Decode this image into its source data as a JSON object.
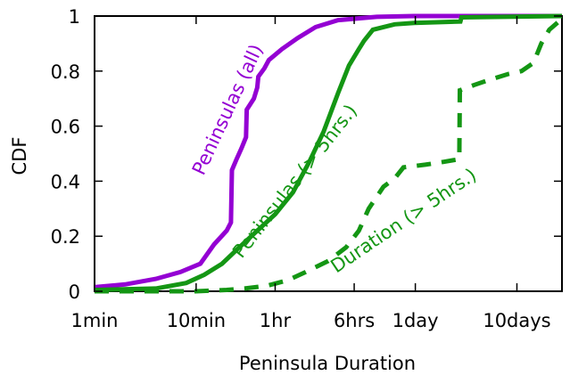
{
  "chart_data": {
    "type": "line",
    "title": "",
    "xlabel": "Peninsula Duration",
    "ylabel": "CDF",
    "xscale": "log",
    "xlim_minutes": [
      1,
      40000
    ],
    "ylim": [
      0,
      1
    ],
    "grid": false,
    "legend": "none",
    "x_ticks": [
      {
        "label": "1min",
        "minutes": 1
      },
      {
        "label": "10min",
        "minutes": 10
      },
      {
        "label": "1hr",
        "minutes": 60
      },
      {
        "label": "6hrs",
        "minutes": 360
      },
      {
        "label": "1day",
        "minutes": 1440
      },
      {
        "label": "10days",
        "minutes": 14400
      }
    ],
    "y_ticks": [
      {
        "label": "0",
        "value": 0
      },
      {
        "label": "0.2",
        "value": 0.2
      },
      {
        "label": "0.4",
        "value": 0.4
      },
      {
        "label": "0.6",
        "value": 0.6
      },
      {
        "label": "0.8",
        "value": 0.8
      },
      {
        "label": "1",
        "value": 1
      }
    ],
    "series": [
      {
        "name": "Peninsulas (all)",
        "color": "#9400d3",
        "dash": "solid",
        "points": [
          [
            1,
            0.015
          ],
          [
            2,
            0.025
          ],
          [
            4,
            0.045
          ],
          [
            7,
            0.07
          ],
          [
            11,
            0.1
          ],
          [
            15,
            0.17
          ],
          [
            20,
            0.22
          ],
          [
            22,
            0.25
          ],
          [
            22.5,
            0.44
          ],
          [
            25,
            0.48
          ],
          [
            28,
            0.52
          ],
          [
            31,
            0.56
          ],
          [
            31.5,
            0.66
          ],
          [
            37,
            0.7
          ],
          [
            40,
            0.74
          ],
          [
            41,
            0.78
          ],
          [
            47,
            0.81
          ],
          [
            52,
            0.84
          ],
          [
            70,
            0.88
          ],
          [
            100,
            0.92
          ],
          [
            150,
            0.96
          ],
          [
            250,
            0.985
          ],
          [
            600,
            0.997
          ],
          [
            1400,
            1.0
          ],
          [
            40000,
            1.0
          ]
        ],
        "annotation": "Peninsulas (all)"
      },
      {
        "name": "Peninsulas (> 5hrs.)",
        "color": "#149614",
        "dash": "solid",
        "points": [
          [
            1,
            0.005
          ],
          [
            4,
            0.01
          ],
          [
            8,
            0.03
          ],
          [
            12,
            0.06
          ],
          [
            18,
            0.1
          ],
          [
            25,
            0.15
          ],
          [
            40,
            0.22
          ],
          [
            60,
            0.28
          ],
          [
            90,
            0.36
          ],
          [
            130,
            0.47
          ],
          [
            180,
            0.58
          ],
          [
            250,
            0.72
          ],
          [
            320,
            0.82
          ],
          [
            400,
            0.88
          ],
          [
            450,
            0.91
          ],
          [
            550,
            0.95
          ],
          [
            700,
            0.96
          ],
          [
            900,
            0.97
          ],
          [
            1400,
            0.975
          ],
          [
            4000,
            0.98
          ],
          [
            4100,
            0.995
          ],
          [
            40000,
            1.0
          ]
        ],
        "annotation": "Peninsulas (> 5hrs.)"
      },
      {
        "name": "Duration (> 5hrs.)",
        "color": "#149614",
        "dash": "dashed",
        "points": [
          [
            1,
            0.0
          ],
          [
            10,
            0.0
          ],
          [
            20,
            0.005
          ],
          [
            30,
            0.01
          ],
          [
            50,
            0.02
          ],
          [
            80,
            0.04
          ],
          [
            120,
            0.07
          ],
          [
            200,
            0.11
          ],
          [
            300,
            0.16
          ],
          [
            400,
            0.22
          ],
          [
            500,
            0.3
          ],
          [
            700,
            0.38
          ],
          [
            900,
            0.41
          ],
          [
            1100,
            0.45
          ],
          [
            1800,
            0.46
          ],
          [
            2700,
            0.47
          ],
          [
            3900,
            0.48
          ],
          [
            3950,
            0.73
          ],
          [
            5500,
            0.75
          ],
          [
            8000,
            0.77
          ],
          [
            12000,
            0.79
          ],
          [
            16000,
            0.8
          ],
          [
            21000,
            0.83
          ],
          [
            25000,
            0.9
          ],
          [
            30000,
            0.95
          ],
          [
            40000,
            0.99
          ]
        ],
        "annotation": "Duration (> 5hrs.)"
      }
    ]
  }
}
